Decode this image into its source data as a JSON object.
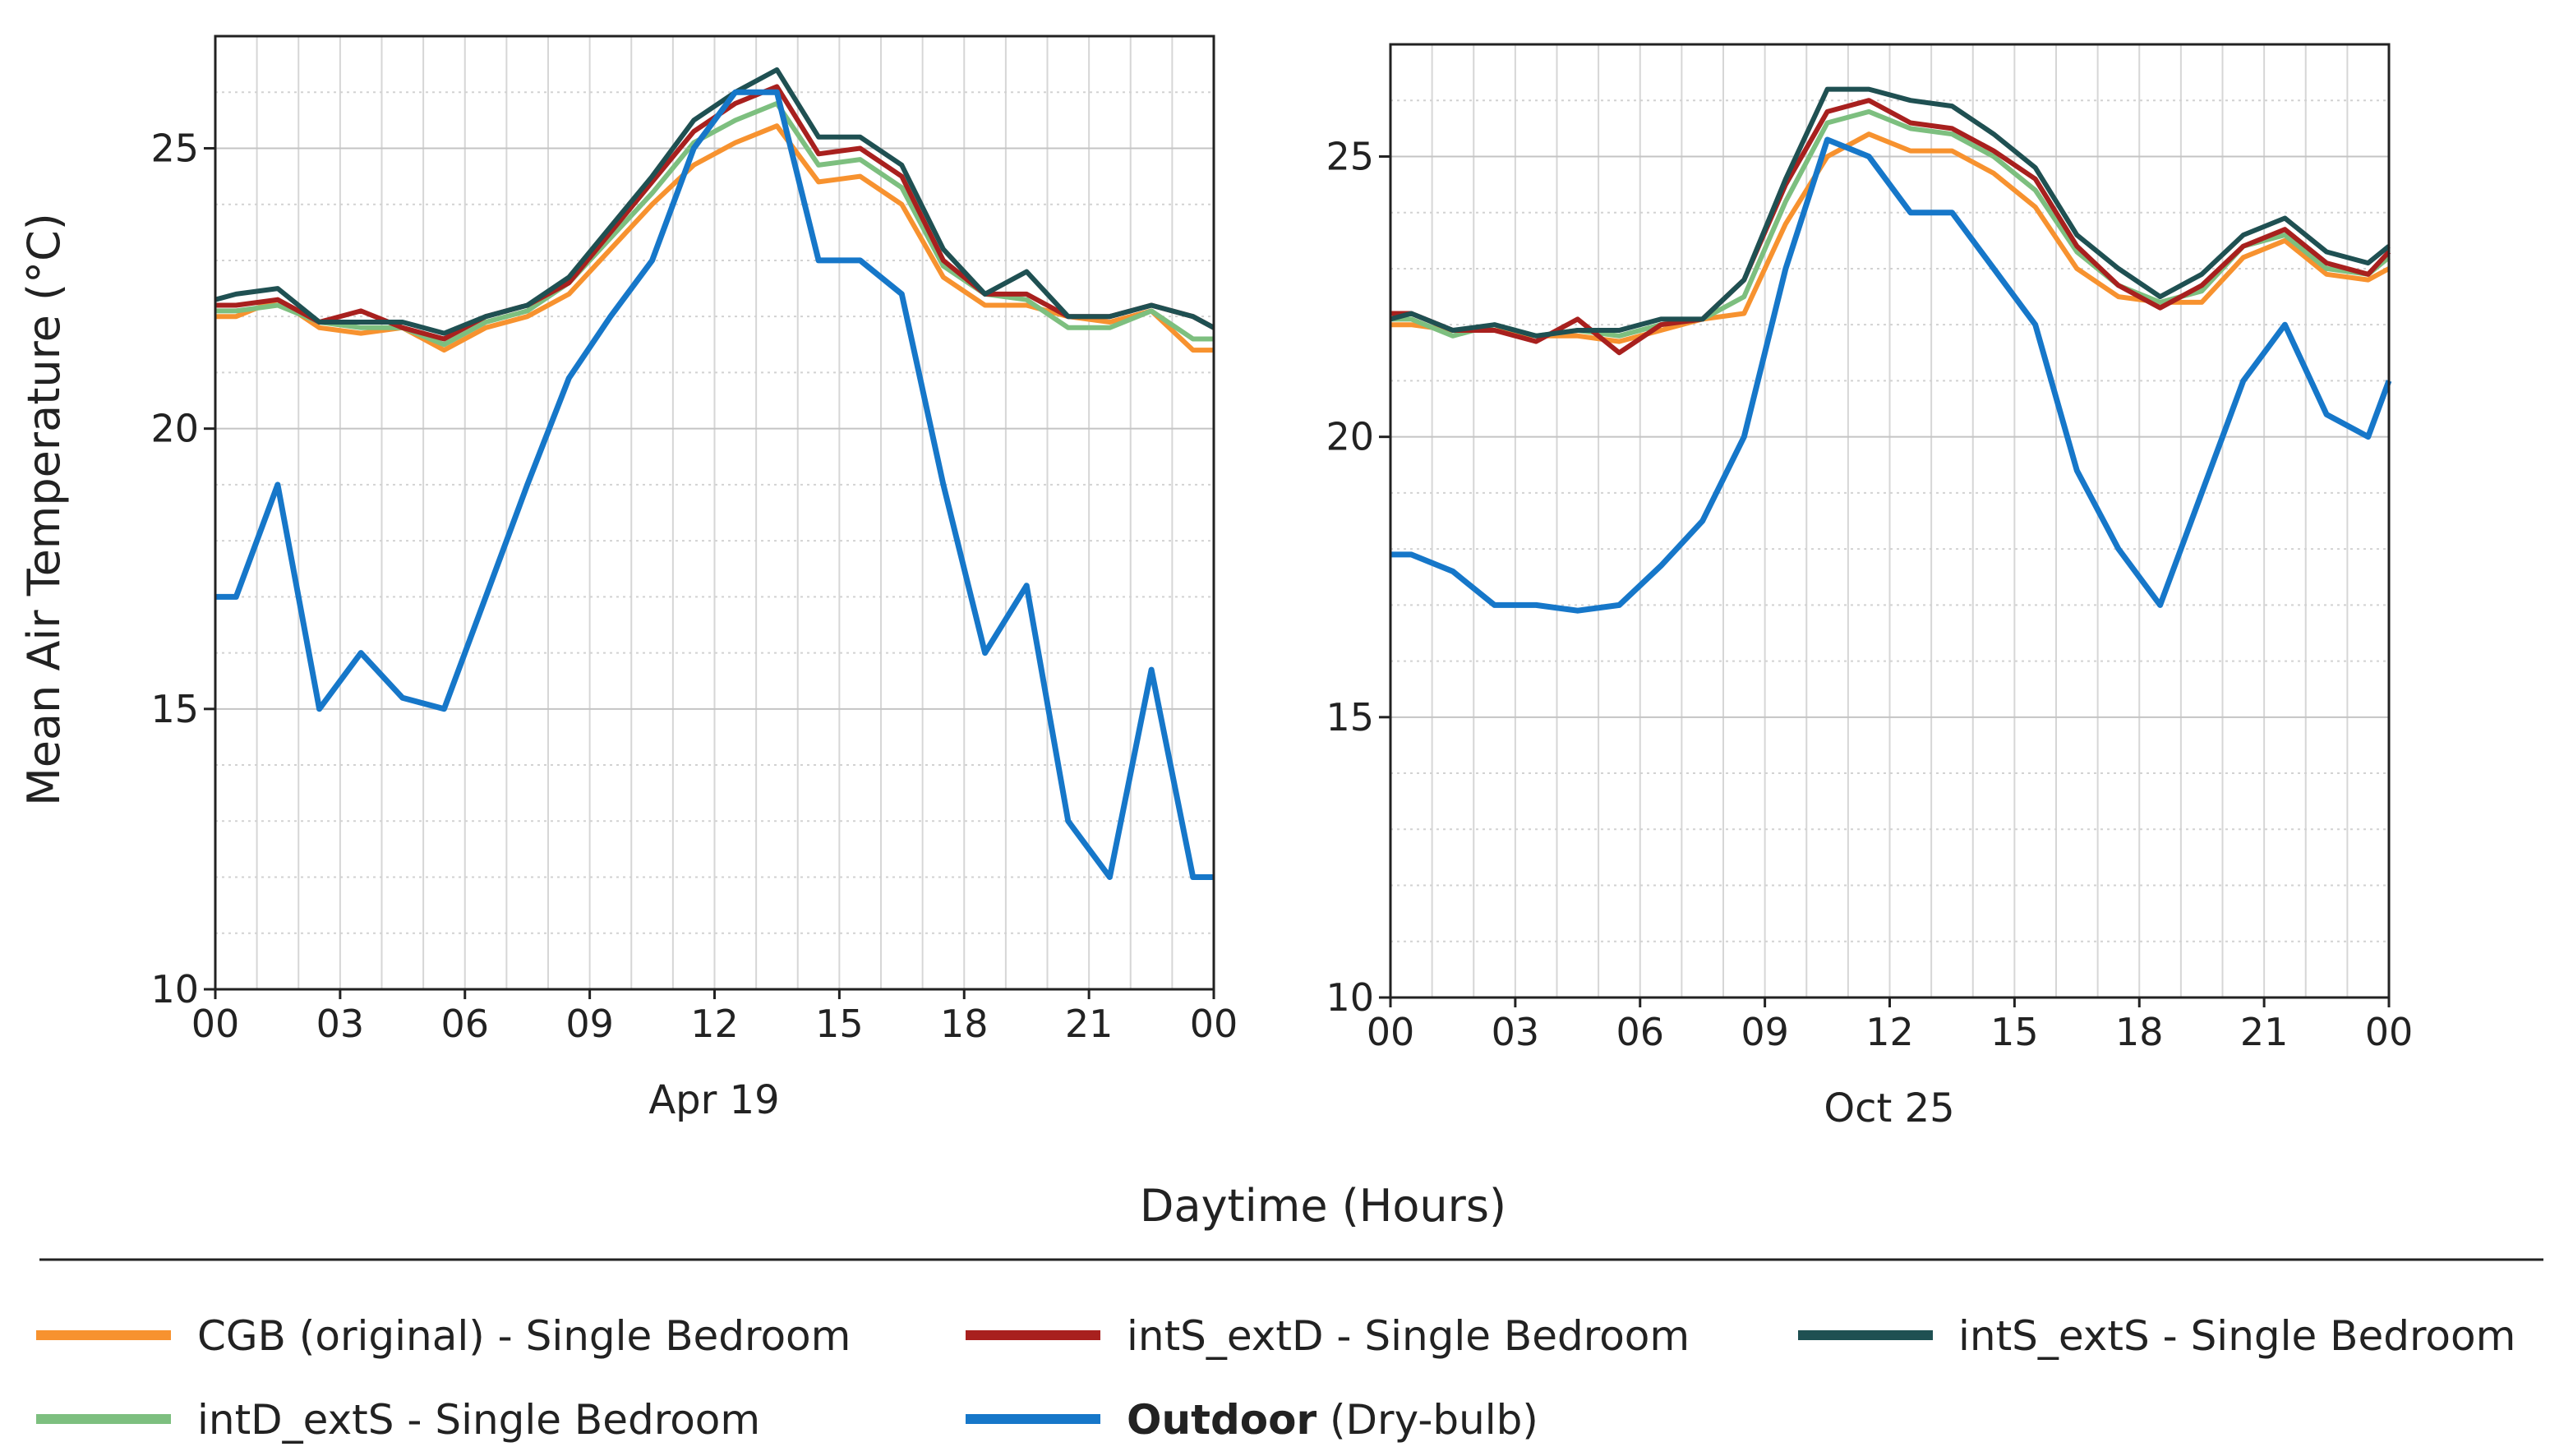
{
  "figure": {
    "ylabel": "Mean Air Temperature (°C)",
    "xlabel": "Daytime (Hours)"
  },
  "colors": {
    "CGB (original) - Single Bedroom": "#F7922F",
    "intS_extD - Single Bedroom": "#A8201E",
    "intS_extS - Single Bedroom": "#1F5052",
    "intD_extS - Single Bedroom": "#7DBF7F",
    "Outdoor": "#1677C9"
  },
  "legend": [
    {
      "name": "CGB (original) - Single Bedroom",
      "label": "CGB (original) - Single Bedroom",
      "bold": ""
    },
    {
      "name": "intS_extD - Single Bedroom",
      "label": "intS_extD - Single Bedroom",
      "bold": ""
    },
    {
      "name": "intS_extS - Single Bedroom",
      "label": "intS_extS - Single Bedroom",
      "bold": ""
    },
    {
      "name": "intD_extS - Single Bedroom",
      "label": "intD_extS - Single Bedroom",
      "bold": ""
    },
    {
      "name": "Outdoor",
      "label": " (Dry-bulb)",
      "bold": "Outdoor"
    }
  ],
  "chart_data": [
    {
      "type": "line",
      "date_label": "Apr 19",
      "x_tick_labels": [
        "00",
        "03",
        "06",
        "09",
        "12",
        "15",
        "18",
        "21",
        "00"
      ],
      "y_ticks": [
        10,
        15,
        20,
        25
      ],
      "xlim": [
        0,
        24
      ],
      "ylim": [
        10,
        27
      ],
      "x": [
        0,
        0.5,
        1.5,
        2.5,
        3.5,
        4.5,
        5.5,
        6.5,
        7.5,
        8.5,
        9.5,
        10.5,
        11.5,
        12.5,
        13.5,
        14.5,
        15.5,
        16.5,
        17.5,
        18.5,
        19.5,
        20.5,
        21.5,
        22.5,
        23.5,
        24
      ],
      "series": [
        {
          "name": "CGB (original) - Single Bedroom",
          "values": [
            22.0,
            22.0,
            22.3,
            21.8,
            21.7,
            21.8,
            21.4,
            21.8,
            22.0,
            22.4,
            23.2,
            24.0,
            24.7,
            25.1,
            25.4,
            24.4,
            24.5,
            24.0,
            22.7,
            22.2,
            22.2,
            22.0,
            21.9,
            22.1,
            21.4,
            21.4
          ]
        },
        {
          "name": "intD_extS - Single Bedroom",
          "values": [
            22.1,
            22.1,
            22.2,
            21.9,
            21.8,
            21.8,
            21.5,
            21.9,
            22.1,
            22.6,
            23.4,
            24.2,
            25.1,
            25.5,
            25.8,
            24.7,
            24.8,
            24.3,
            22.9,
            22.4,
            22.3,
            21.8,
            21.8,
            22.1,
            21.6,
            21.6
          ]
        },
        {
          "name": "intS_extD - Single Bedroom",
          "values": [
            22.2,
            22.2,
            22.3,
            21.9,
            22.1,
            21.8,
            21.6,
            22.0,
            22.2,
            22.6,
            23.5,
            24.4,
            25.3,
            25.8,
            26.1,
            24.9,
            25.0,
            24.5,
            23.0,
            22.4,
            22.4,
            22.0,
            22.0,
            22.2,
            22.0,
            21.8
          ]
        },
        {
          "name": "intS_extS - Single Bedroom",
          "values": [
            22.3,
            22.4,
            22.5,
            21.9,
            21.9,
            21.9,
            21.7,
            22.0,
            22.2,
            22.7,
            23.6,
            24.5,
            25.5,
            26.0,
            26.4,
            25.2,
            25.2,
            24.7,
            23.2,
            22.4,
            22.8,
            22.0,
            22.0,
            22.2,
            22.0,
            21.8
          ]
        },
        {
          "name": "Outdoor",
          "values": [
            17.0,
            17.0,
            19.0,
            15.0,
            16.0,
            15.2,
            15.0,
            17.0,
            19.0,
            20.9,
            22.0,
            23.0,
            25.0,
            26.0,
            26.0,
            23.0,
            23.0,
            22.4,
            19.0,
            16.0,
            17.2,
            13.0,
            12.0,
            15.7,
            12.0,
            12.0
          ]
        }
      ]
    },
    {
      "type": "line",
      "date_label": "Oct 25",
      "x_tick_labels": [
        "00",
        "03",
        "06",
        "09",
        "12",
        "15",
        "18",
        "21",
        "00"
      ],
      "y_ticks": [
        10,
        15,
        20,
        25
      ],
      "xlim": [
        0,
        24
      ],
      "ylim": [
        10,
        27
      ],
      "x": [
        0,
        0.5,
        1.5,
        2.5,
        3.5,
        4.5,
        5.5,
        6.5,
        7.5,
        8.5,
        9.5,
        10.5,
        11.5,
        12.5,
        13.5,
        14.5,
        15.5,
        16.5,
        17.5,
        18.5,
        19.5,
        20.5,
        21.5,
        22.5,
        23.5,
        24
      ],
      "series": [
        {
          "name": "CGB (original) - Single Bedroom",
          "values": [
            22.0,
            22.0,
            21.9,
            21.9,
            21.8,
            21.8,
            21.7,
            21.9,
            22.1,
            22.2,
            23.8,
            25.0,
            25.4,
            25.1,
            25.1,
            24.7,
            24.1,
            23.0,
            22.5,
            22.4,
            22.4,
            23.2,
            23.5,
            22.9,
            22.8,
            23.0
          ]
        },
        {
          "name": "intD_extS - Single Bedroom",
          "values": [
            22.1,
            22.1,
            21.8,
            22.0,
            21.8,
            21.9,
            21.8,
            22.0,
            22.1,
            22.5,
            24.2,
            25.6,
            25.8,
            25.5,
            25.4,
            25.0,
            24.4,
            23.3,
            22.7,
            22.4,
            22.6,
            23.4,
            23.6,
            23.0,
            22.9,
            23.2
          ]
        },
        {
          "name": "intS_extD - Single Bedroom",
          "values": [
            22.2,
            22.2,
            21.9,
            21.9,
            21.7,
            22.1,
            21.5,
            22.0,
            22.1,
            22.8,
            24.5,
            25.8,
            26.0,
            25.6,
            25.5,
            25.1,
            24.6,
            23.4,
            22.7,
            22.3,
            22.7,
            23.4,
            23.7,
            23.1,
            22.9,
            23.3
          ]
        },
        {
          "name": "intS_extS - Single Bedroom",
          "values": [
            22.1,
            22.2,
            21.9,
            22.0,
            21.8,
            21.9,
            21.9,
            22.1,
            22.1,
            22.8,
            24.6,
            26.2,
            26.2,
            26.0,
            25.9,
            25.4,
            24.8,
            23.6,
            23.0,
            22.5,
            22.9,
            23.6,
            23.9,
            23.3,
            23.1,
            23.4
          ]
        },
        {
          "name": "Outdoor",
          "values": [
            17.9,
            17.9,
            17.6,
            17.0,
            17.0,
            16.9,
            17.0,
            17.7,
            18.5,
            20.0,
            23.0,
            25.3,
            25.0,
            24.0,
            24.0,
            23.0,
            22.0,
            19.4,
            18.0,
            17.0,
            19.0,
            21.0,
            22.0,
            20.4,
            20.0,
            21.0
          ]
        }
      ]
    }
  ]
}
